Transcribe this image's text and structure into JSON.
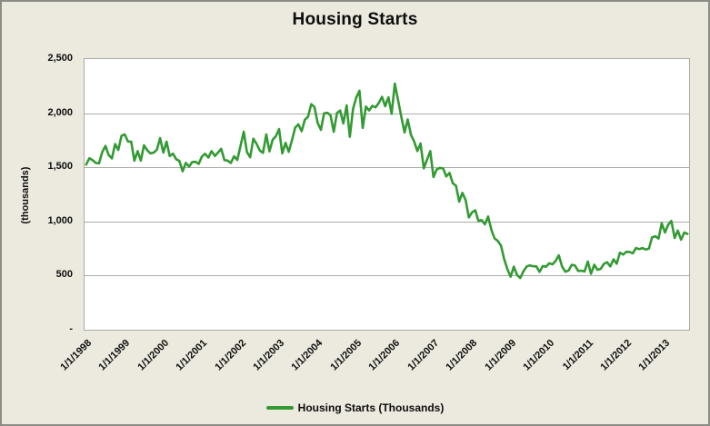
{
  "chart_data": {
    "type": "line",
    "title": "Housing Starts",
    "grid": true,
    "y_axis": {
      "label": "(thousands)",
      "min": 0,
      "max": 2500,
      "tick_values": [
        2500,
        2000,
        1500,
        1000,
        500,
        0
      ],
      "tick_labels": [
        "2,500",
        "2,000",
        "1,500",
        "1,000",
        "500",
        "-"
      ]
    },
    "x_axis": {
      "tick_labels": [
        "1/1/1998",
        "1/1/1999",
        "1/1/2000",
        "1/1/2001",
        "1/1/2002",
        "1/1/2003",
        "1/1/2004",
        "1/1/2005",
        "1/1/2006",
        "1/1/2007",
        "1/1/2008",
        "1/1/2009",
        "1/1/2010",
        "1/1/2011",
        "1/1/2012",
        "1/1/2013"
      ],
      "ticks_every_months": 12
    },
    "legend": {
      "position": "bottom",
      "entries": [
        "Housing Starts (Thousands)"
      ]
    },
    "series": [
      {
        "name": "Housing Starts (Thousands)",
        "color": "#339A33",
        "frequency": "monthly",
        "first_point": "1/1/1998",
        "values": [
          1525,
          1584,
          1567,
          1540,
          1536,
          1641,
          1698,
          1614,
          1582,
          1715,
          1660,
          1792,
          1804,
          1738,
          1737,
          1561,
          1649,
          1562,
          1704,
          1657,
          1628,
          1636,
          1663,
          1769,
          1636,
          1737,
          1604,
          1626,
          1575,
          1559,
          1463,
          1541,
          1507,
          1549,
          1551,
          1532,
          1600,
          1625,
          1590,
          1649,
          1605,
          1636,
          1670,
          1567,
          1562,
          1540,
          1602,
          1568,
          1698,
          1829,
          1642,
          1592,
          1764,
          1717,
          1655,
          1633,
          1804,
          1648,
          1753,
          1788,
          1853,
          1629,
          1726,
          1643,
          1751,
          1867,
          1897,
          1833,
          1939,
          1967,
          2083,
          2057,
          1911,
          1846,
          1998,
          2003,
          1981,
          1828,
          2002,
          2024,
          1905,
          2072,
          1782,
          2042,
          2144,
          2207,
          1864,
          2061,
          2025,
          2068,
          2054,
          2095,
          2151,
          2065,
          2147,
          1994,
          2273,
          2119,
          1969,
          1821,
          1942,
          1802,
          1737,
          1650,
          1720,
          1491,
          1570,
          1649,
          1409,
          1480,
          1495,
          1490,
          1415,
          1448,
          1354,
          1330,
          1183,
          1264,
          1197,
          1037,
          1084,
          1103,
          1005,
          1013,
          973,
          1046,
          923,
          844,
          820,
          777,
          652,
          560,
          490,
          582,
          505,
          478,
          540,
          585,
          594,
          586,
          585,
          534,
          588,
          581,
          614,
          604,
          636,
          687,
          583,
          536,
          546,
          599,
          594,
          543,
          545,
          539,
          630,
          517,
          600,
          554,
          561,
          608,
          623,
          585,
          650,
          610,
          711,
          694,
          720,
          718,
          706,
          754,
          744,
          754,
          741,
          749,
          854,
          863,
          842,
          983,
          898,
          969,
          1005,
          847,
          915,
          831,
          898,
          885
        ]
      }
    ]
  },
  "colors": {
    "background": "#ECE9DE",
    "plot_background": "#FFFFFF",
    "gridline": "#ABABA6",
    "frame_border": "#8C8C86",
    "series_green": "#339A33",
    "text": "#0D0D0D"
  }
}
